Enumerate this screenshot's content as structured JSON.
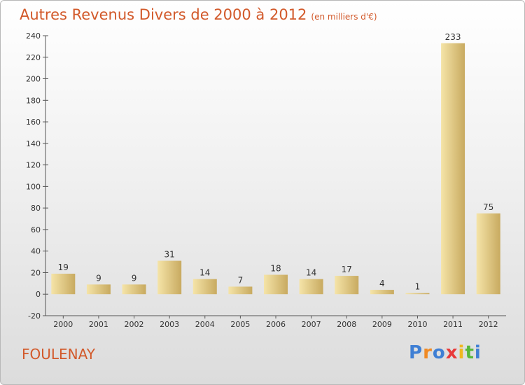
{
  "header": {
    "title": "Autres Revenus Divers de 2000 à 2012",
    "unit": "(en milliers d'€)"
  },
  "footer": {
    "commune": "FOULENAY",
    "logo_letters": [
      "P",
      "r",
      "o",
      "x",
      "i",
      "t",
      "i"
    ],
    "logo_colors": [
      "#3f7fd4",
      "#f08a24",
      "#3f7fd4",
      "#e83a3a",
      "#f0b820",
      "#57b83a",
      "#3f7fd4"
    ]
  },
  "colors": {
    "title": "#d2592a",
    "bar_light": "#f3dd9a",
    "bar_dark": "#c9ac62"
  },
  "chart_data": {
    "type": "bar",
    "title": "Autres Revenus Divers de 2000 à 2012",
    "subtitle": "(en milliers d'€)",
    "categories": [
      "2000",
      "2001",
      "2002",
      "2003",
      "2004",
      "2005",
      "2006",
      "2007",
      "2008",
      "2009",
      "2010",
      "2011",
      "2012"
    ],
    "values": [
      19,
      9,
      9,
      31,
      14,
      7,
      18,
      14,
      17,
      4,
      1,
      233,
      75
    ],
    "ylim": [
      -20,
      240
    ],
    "yticks": [
      -20,
      0,
      20,
      40,
      60,
      80,
      100,
      120,
      140,
      160,
      180,
      200,
      220,
      240
    ],
    "grid": false,
    "legend": "none"
  }
}
